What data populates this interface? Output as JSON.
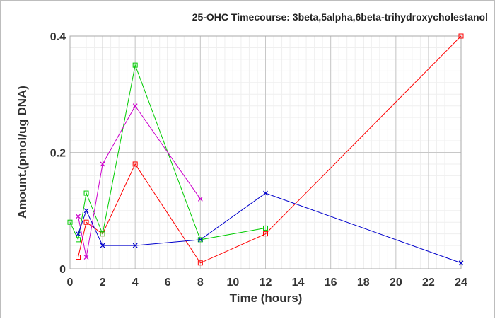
{
  "chart_data": {
    "type": "line",
    "title": "25-OHC Timecourse: 3beta,5alpha,6beta-trihydroxycholestanol",
    "xlabel": "Time (hours)",
    "ylabel": "Amount.(pmol/ug DNA)",
    "xlim": [
      0,
      24
    ],
    "ylim": [
      0,
      0.4
    ],
    "xticks": [
      0,
      2,
      4,
      6,
      8,
      10,
      12,
      14,
      16,
      18,
      20,
      22,
      24
    ],
    "yticks": [
      0,
      0.2,
      0.4
    ],
    "ytick_labels": [
      "0",
      "0.2",
      "0.4"
    ],
    "grid": true,
    "series": [
      {
        "color": "#ff0000",
        "marker": "square",
        "points": [
          [
            0.5,
            0.02
          ],
          [
            1,
            0.08
          ],
          [
            2,
            0.06
          ],
          [
            4,
            0.18
          ],
          [
            8,
            0.01
          ],
          [
            12,
            0.06
          ],
          [
            24,
            0.4
          ]
        ]
      },
      {
        "color": "#00cc00",
        "marker": "square",
        "points": [
          [
            0,
            0.08
          ],
          [
            0.5,
            0.05
          ],
          [
            1,
            0.13
          ],
          [
            2,
            0.06
          ],
          [
            4,
            0.35
          ],
          [
            8,
            0.05
          ],
          [
            12,
            0.07
          ]
        ]
      },
      {
        "color": "#cc00cc",
        "marker": "x",
        "points": [
          [
            0.5,
            0.09
          ],
          [
            1,
            0.02
          ],
          [
            2,
            0.18
          ],
          [
            4,
            0.28
          ],
          [
            8,
            0.12
          ]
        ]
      },
      {
        "color": "#0000cc",
        "marker": "x",
        "points": [
          [
            0.5,
            0.06
          ],
          [
            1,
            0.1
          ],
          [
            2,
            0.04
          ],
          [
            4,
            0.04
          ],
          [
            8,
            0.05
          ],
          [
            12,
            0.13
          ],
          [
            24,
            0.01
          ]
        ]
      }
    ]
  }
}
